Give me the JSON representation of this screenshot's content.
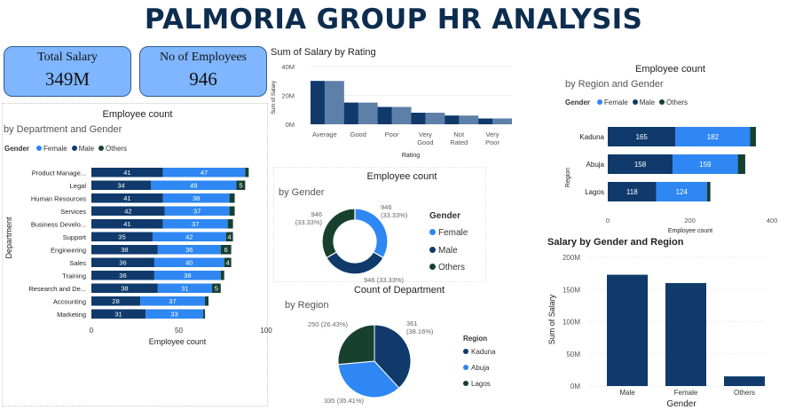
{
  "title": "PALMORIA GROUP HR ANALYSIS",
  "colors": {
    "female": "#2e87f2",
    "male": "#0f3a6b",
    "others": "#17402e",
    "area_dark": "#0f3a6b",
    "area_light": "#5e7fa8",
    "card": "#7fb6ff"
  },
  "cards": [
    {
      "label": "Total Salary",
      "value": "349M"
    },
    {
      "label": "No of Employees",
      "value": "946"
    }
  ],
  "legend": {
    "gender_label": "Gender",
    "female": "Female",
    "male": "Male",
    "others": "Others"
  },
  "dept_chart": {
    "title": "Employee count",
    "subtitle": "by Department and Gender",
    "xlabel": "Employee count",
    "ylabel": "Department",
    "xticks": [
      "0",
      "50",
      "100"
    ]
  },
  "rating_chart": {
    "title": "Sum of Salary by Rating",
    "ylabel": "Sum of Salary",
    "xlabel": "Rating"
  },
  "donut_chart": {
    "title": "Employee count",
    "subtitle": "by Gender",
    "legend_title": "Gender"
  },
  "pie_chart": {
    "title": "Count of Department",
    "subtitle": "by Region",
    "legend_title": "Region"
  },
  "region_chart": {
    "title": "Employee count",
    "subtitle": "by Region and Gender",
    "ylabel": "Region",
    "xlabel": "Employee count",
    "xticks": [
      "0",
      "200",
      "400"
    ]
  },
  "salary_chart": {
    "title": "Salary by Gender and Region",
    "ylabel": "Sum of Salary",
    "xlabel": "Gender"
  },
  "chart_data": [
    {
      "id": "dept",
      "type": "bar",
      "orientation": "horizontal",
      "stacked": true,
      "categories": [
        "Product Manage...",
        "Legal",
        "Human Resources",
        "Services",
        "Business Develo...",
        "Support",
        "Engineering",
        "Sales",
        "Training",
        "Research and De...",
        "Accounting",
        "Marketing"
      ],
      "series": [
        {
          "name": "Male",
          "values": [
            41,
            34,
            41,
            42,
            41,
            35,
            38,
            36,
            36,
            38,
            28,
            31
          ]
        },
        {
          "name": "Female",
          "values": [
            47,
            49,
            38,
            37,
            37,
            42,
            36,
            40,
            38,
            31,
            37,
            33
          ]
        },
        {
          "name": "Others",
          "values": [
            2,
            5,
            3,
            3,
            3,
            4,
            6,
            4,
            2,
            5,
            2,
            1
          ]
        }
      ],
      "xlim": [
        0,
        100
      ]
    },
    {
      "id": "rating",
      "type": "area",
      "categories": [
        "Average",
        "Good",
        "Poor",
        "Very Good",
        "Not Rated",
        "Very Poor"
      ],
      "values": [
        30,
        15,
        12,
        8,
        6,
        4
      ],
      "yticks": [
        "0M",
        "20M",
        "40M"
      ],
      "ylim": [
        0,
        40
      ]
    },
    {
      "id": "gender",
      "type": "pie",
      "donut": true,
      "categories": [
        "Female",
        "Male",
        "Others"
      ],
      "values": [
        946,
        946,
        946
      ],
      "labels": [
        "946\n(33.33%)",
        "946 (33.33%)",
        "946\n(33.33%)"
      ]
    },
    {
      "id": "region_pie",
      "type": "pie",
      "categories": [
        "Kaduna",
        "Abuja",
        "Lagos"
      ],
      "values": [
        361,
        335,
        250
      ],
      "labels": [
        "361\n(38.16%)",
        "335 (35.41%)",
        "250 (26.43%)"
      ]
    },
    {
      "id": "region_bar",
      "type": "bar",
      "orientation": "horizontal",
      "stacked": true,
      "categories": [
        "Kaduna",
        "Abuja",
        "Lagos"
      ],
      "series": [
        {
          "name": "Male",
          "values": [
            165,
            158,
            118
          ]
        },
        {
          "name": "Female",
          "values": [
            182,
            159,
            124
          ]
        },
        {
          "name": "Others",
          "values": [
            14,
            18,
            8
          ]
        }
      ],
      "xlim": [
        0,
        400
      ]
    },
    {
      "id": "salary_gender",
      "type": "bar",
      "categories": [
        "Male",
        "Female",
        "Others"
      ],
      "values": [
        173,
        160,
        15
      ],
      "yticks": [
        "0M",
        "50M",
        "100M",
        "150M",
        "200M"
      ],
      "ylim": [
        0,
        200
      ]
    }
  ]
}
